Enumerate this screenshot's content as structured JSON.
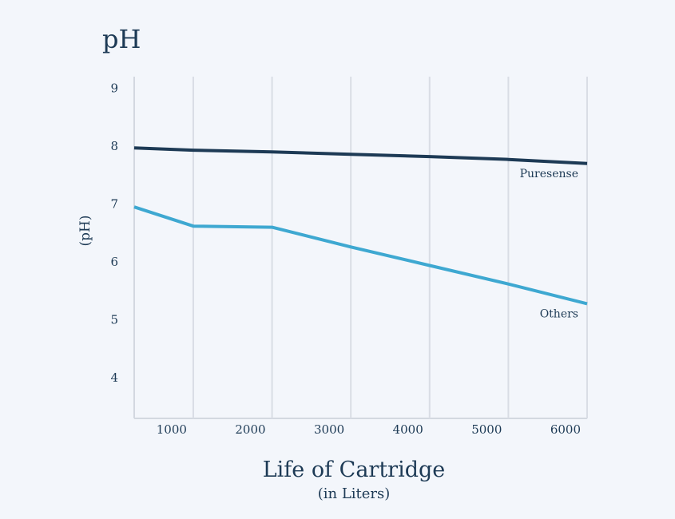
{
  "chart_data": {
    "type": "line",
    "title": "pH",
    "xlabel": "Life of Cartridge",
    "xlabel_sub": "(in Liters)",
    "ylabel": "(pH)",
    "xlim": [
      250,
      6000
    ],
    "ylim": [
      3.3,
      9.2
    ],
    "x_ticks": [
      1000,
      2000,
      3000,
      4000,
      5000,
      6000
    ],
    "y_ticks": [
      4,
      5,
      6,
      7,
      8,
      9
    ],
    "grid": true,
    "series": [
      {
        "name": "Puresense",
        "color": "#1d3a55",
        "points": [
          [
            250,
            7.97
          ],
          [
            1000,
            7.93
          ],
          [
            2000,
            7.9
          ],
          [
            3000,
            7.86
          ],
          [
            4000,
            7.82
          ],
          [
            5000,
            7.77
          ],
          [
            6000,
            7.7
          ]
        ]
      },
      {
        "name": "Others",
        "color": "#3ea8d1",
        "points": [
          [
            250,
            6.95
          ],
          [
            1000,
            6.62
          ],
          [
            2000,
            6.6
          ],
          [
            3000,
            6.26
          ],
          [
            4000,
            5.94
          ],
          [
            5000,
            5.62
          ],
          [
            6000,
            5.28
          ]
        ]
      }
    ]
  }
}
